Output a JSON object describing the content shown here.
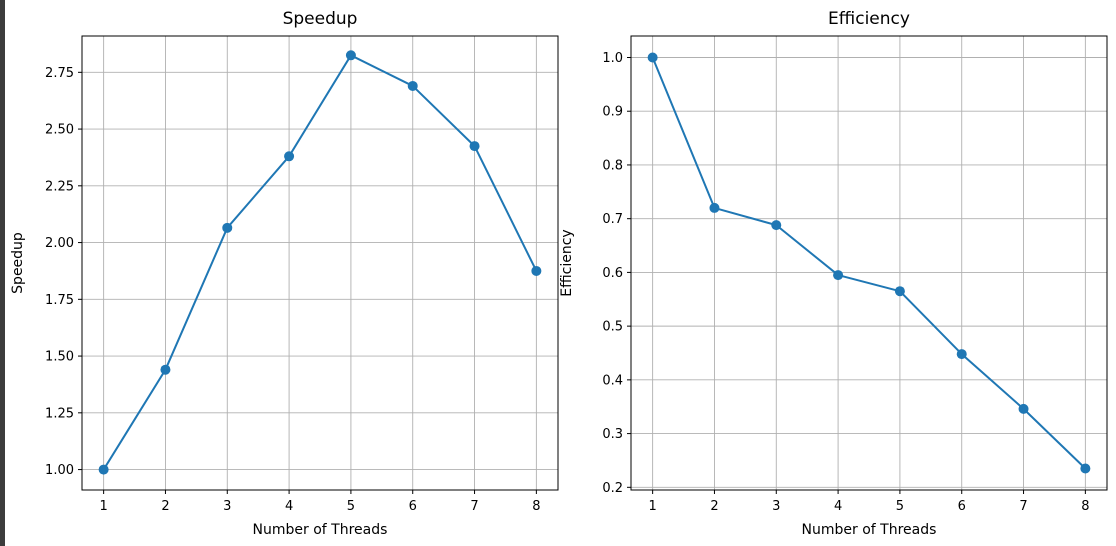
{
  "chart_data": [
    {
      "type": "line",
      "title": "Speedup",
      "xlabel": "Number of Threads",
      "ylabel": "Speedup",
      "x": [
        1,
        2,
        3,
        4,
        5,
        6,
        7,
        8
      ],
      "series": [
        {
          "values": [
            1.0,
            1.44,
            2.065,
            2.38,
            2.825,
            2.69,
            2.425,
            1.875
          ]
        }
      ],
      "xticks": [
        "1",
        "2",
        "3",
        "4",
        "5",
        "6",
        "7",
        "8"
      ],
      "yticks": [
        "1.00",
        "1.25",
        "1.50",
        "1.75",
        "2.00",
        "2.25",
        "2.50",
        "2.75"
      ],
      "ylim": [
        0.91,
        2.91
      ],
      "xlim": [
        0.65,
        8.35
      ],
      "grid": true,
      "marker": "circle",
      "line_color": "#1f77b4"
    },
    {
      "type": "line",
      "title": "Efficiency",
      "xlabel": "Number of Threads",
      "ylabel": "Efficiency",
      "x": [
        1,
        2,
        3,
        4,
        5,
        6,
        7,
        8
      ],
      "series": [
        {
          "values": [
            1.0,
            0.72,
            0.688,
            0.595,
            0.565,
            0.448,
            0.346,
            0.235
          ]
        }
      ],
      "xticks": [
        "1",
        "2",
        "3",
        "4",
        "5",
        "6",
        "7",
        "8"
      ],
      "yticks": [
        "0.2",
        "0.3",
        "0.4",
        "0.5",
        "0.6",
        "0.7",
        "0.8",
        "0.9",
        "1.0"
      ],
      "ylim": [
        0.195,
        1.04
      ],
      "xlim": [
        0.65,
        8.35
      ],
      "grid": true,
      "marker": "circle",
      "line_color": "#1f77b4"
    }
  ]
}
